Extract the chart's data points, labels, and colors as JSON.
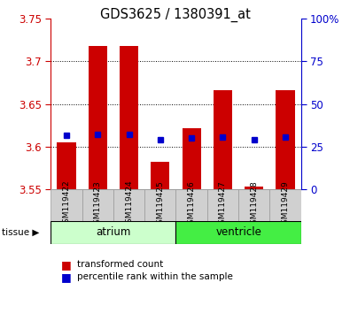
{
  "title": "GDS3625 / 1380391_at",
  "samples": [
    "GSM119422",
    "GSM119423",
    "GSM119424",
    "GSM119425",
    "GSM119426",
    "GSM119427",
    "GSM119428",
    "GSM119429"
  ],
  "bar_tops": [
    3.605,
    3.718,
    3.718,
    3.582,
    3.622,
    3.666,
    3.553,
    3.666
  ],
  "bar_bottom": 3.55,
  "percentile_values": [
    3.613,
    3.614,
    3.614,
    3.608,
    3.61,
    3.611,
    3.608,
    3.611
  ],
  "ylim_left": [
    3.55,
    3.75
  ],
  "ylim_right": [
    0,
    100
  ],
  "yticks_left": [
    3.55,
    3.6,
    3.65,
    3.7,
    3.75
  ],
  "ytick_labels_left": [
    "3.55",
    "3.6",
    "3.65",
    "3.7",
    "3.75"
  ],
  "yticks_right": [
    0,
    25,
    50,
    75,
    100
  ],
  "ytick_labels_right": [
    "0",
    "25",
    "50",
    "75",
    "100%"
  ],
  "grid_lines": [
    3.6,
    3.65,
    3.7
  ],
  "bar_color": "#cc0000",
  "dot_color": "#0000cc",
  "tissue_groups": [
    {
      "label": "atrium",
      "start": 0,
      "end": 3,
      "color": "#ccffcc"
    },
    {
      "label": "ventricle",
      "start": 4,
      "end": 7,
      "color": "#44ee44"
    }
  ],
  "bar_width": 0.6,
  "left_tick_color": "#cc0000",
  "right_tick_color": "#0000cc",
  "xtick_bg_color": "#d0d0d0",
  "legend_bar_label": "transformed count",
  "legend_dot_label": "percentile rank within the sample",
  "tissue_label": "tissue ▶"
}
